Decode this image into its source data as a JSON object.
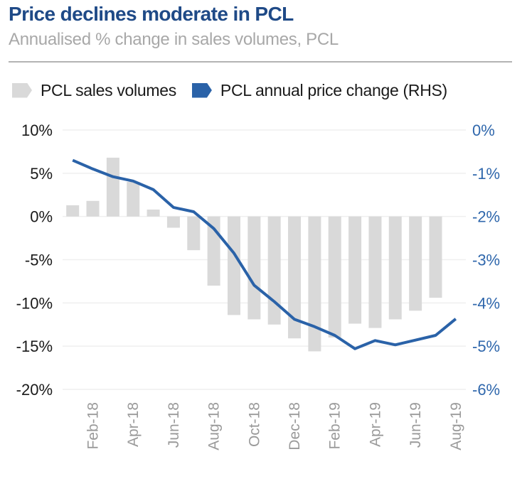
{
  "header": {
    "title": "Price declines moderate in PCL",
    "subtitle": "Annualised % change in sales volumes, PCL"
  },
  "legend": [
    {
      "label": "PCL sales volumes",
      "color": "#d9d9d9"
    },
    {
      "label": "PCL annual price change (RHS)",
      "color": "#2a62a8"
    }
  ],
  "chart_data": {
    "type": "bar",
    "title": "Price declines moderate in PCL",
    "subtitle": "Annualised % change in sales volumes, PCL",
    "xlabel": "",
    "ylabel": "",
    "legend_position": "top-left",
    "grid": true,
    "categories": [
      "Jan-18",
      "Feb-18",
      "Mar-18",
      "Apr-18",
      "May-18",
      "Jun-18",
      "Jul-18",
      "Aug-18",
      "Sep-18",
      "Oct-18",
      "Nov-18",
      "Dec-18",
      "Jan-19",
      "Feb-19",
      "Mar-19",
      "Apr-19",
      "May-19",
      "Jun-19",
      "Jul-19",
      "Aug-19"
    ],
    "x_tick_labels": [
      "Feb-18",
      "Apr-18",
      "Jun-18",
      "Aug-18",
      "Oct-18",
      "Dec-18",
      "Feb-19",
      "Apr-19",
      "Jun-19",
      "Aug-19"
    ],
    "left_axis": {
      "ylim": [
        -20,
        10
      ],
      "tick_labels": [
        "10%",
        "5%",
        "0%",
        "-5%",
        "-10%",
        "-15%",
        "-20%"
      ],
      "tick_values": [
        10,
        5,
        0,
        -5,
        -10,
        -15,
        -20
      ]
    },
    "right_axis": {
      "ylim": [
        -6,
        0
      ],
      "tick_labels": [
        "0%",
        "-1%",
        "-2%",
        "-3%",
        "-4%",
        "-5%",
        "-6%"
      ],
      "tick_values": [
        0,
        -1,
        -2,
        -3,
        -4,
        -5,
        -6
      ],
      "color": "#2f67ac"
    },
    "series": [
      {
        "name": "PCL sales volumes",
        "type": "bar",
        "axis": "left",
        "color": "#d9d9d9",
        "values": [
          1.3,
          1.8,
          6.8,
          4.0,
          0.8,
          -1.3,
          -3.9,
          -8.0,
          -11.4,
          -11.9,
          -12.5,
          -14.1,
          -15.6,
          -14.0,
          -12.4,
          -12.9,
          -11.9,
          -10.9,
          -9.4,
          null
        ]
      },
      {
        "name": "PCL annual price change (RHS)",
        "type": "line",
        "axis": "right",
        "color": "#2a62a8",
        "values": [
          -0.7,
          -0.9,
          -1.08,
          -1.18,
          -1.38,
          -1.79,
          -1.89,
          -2.28,
          -2.85,
          -3.59,
          -3.97,
          -4.38,
          -4.55,
          -4.75,
          -5.06,
          -4.87,
          -4.97,
          -4.86,
          -4.75,
          -4.37
        ]
      }
    ]
  }
}
